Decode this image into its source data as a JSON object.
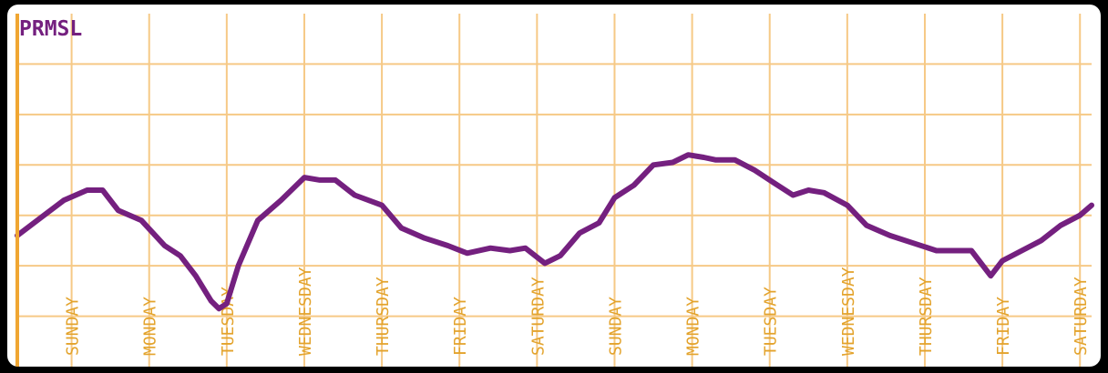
{
  "chart_data": {
    "type": "line",
    "title": "PRMSL",
    "xlabel": "",
    "ylabel": "",
    "grid": true,
    "x_range": [
      0,
      13.85
    ],
    "ylim": [
      0,
      7
    ],
    "x_ticks": [
      {
        "x": 0.7,
        "label": "SUNDAY"
      },
      {
        "x": 1.7,
        "label": "MONDAY"
      },
      {
        "x": 2.7,
        "label": "TUESDAY"
      },
      {
        "x": 3.7,
        "label": "WEDNESDAY"
      },
      {
        "x": 4.7,
        "label": "THURSDAY"
      },
      {
        "x": 5.7,
        "label": "FRIDAY"
      },
      {
        "x": 6.7,
        "label": "SATURDAY"
      },
      {
        "x": 7.7,
        "label": "SUNDAY"
      },
      {
        "x": 8.7,
        "label": "MONDAY"
      },
      {
        "x": 9.7,
        "label": "TUESDAY"
      },
      {
        "x": 10.7,
        "label": "WEDNESDAY"
      },
      {
        "x": 11.7,
        "label": "THURSDAY"
      },
      {
        "x": 12.7,
        "label": "FRIDAY"
      },
      {
        "x": 13.7,
        "label": "SATURDAY"
      }
    ],
    "x_gridlines": [
      0.7,
      1.7,
      2.7,
      3.7,
      4.7,
      5.7,
      6.7,
      7.7,
      8.7,
      9.7,
      10.7,
      11.7,
      12.7,
      13.7
    ],
    "y_gridlines": [
      1,
      2,
      3,
      4,
      5,
      6
    ],
    "series": [
      {
        "color": "#74207f",
        "points": [
          [
            0,
            2.6
          ],
          [
            0.3,
            2.95
          ],
          [
            0.6,
            3.3
          ],
          [
            0.9,
            3.5
          ],
          [
            1.1,
            3.5
          ],
          [
            1.3,
            3.1
          ],
          [
            1.6,
            2.9
          ],
          [
            1.9,
            2.4
          ],
          [
            2.1,
            2.2
          ],
          [
            2.3,
            1.8
          ],
          [
            2.5,
            1.3
          ],
          [
            2.6,
            1.15
          ],
          [
            2.7,
            1.25
          ],
          [
            2.85,
            2.0
          ],
          [
            3.1,
            2.9
          ],
          [
            3.4,
            3.3
          ],
          [
            3.7,
            3.75
          ],
          [
            3.9,
            3.7
          ],
          [
            4.1,
            3.7
          ],
          [
            4.35,
            3.4
          ],
          [
            4.7,
            3.2
          ],
          [
            4.95,
            2.75
          ],
          [
            5.25,
            2.55
          ],
          [
            5.55,
            2.4
          ],
          [
            5.8,
            2.25
          ],
          [
            6.1,
            2.35
          ],
          [
            6.35,
            2.3
          ],
          [
            6.55,
            2.35
          ],
          [
            6.8,
            2.05
          ],
          [
            7.0,
            2.2
          ],
          [
            7.25,
            2.65
          ],
          [
            7.5,
            2.85
          ],
          [
            7.7,
            3.35
          ],
          [
            7.95,
            3.6
          ],
          [
            8.2,
            4.0
          ],
          [
            8.45,
            4.05
          ],
          [
            8.65,
            4.2
          ],
          [
            8.85,
            4.15
          ],
          [
            9.0,
            4.1
          ],
          [
            9.25,
            4.1
          ],
          [
            9.5,
            3.9
          ],
          [
            9.75,
            3.65
          ],
          [
            10.0,
            3.4
          ],
          [
            10.2,
            3.5
          ],
          [
            10.4,
            3.45
          ],
          [
            10.7,
            3.2
          ],
          [
            10.95,
            2.8
          ],
          [
            11.25,
            2.6
          ],
          [
            11.55,
            2.45
          ],
          [
            11.85,
            2.3
          ],
          [
            12.1,
            2.3
          ],
          [
            12.3,
            2.3
          ],
          [
            12.55,
            1.8
          ],
          [
            12.7,
            2.1
          ],
          [
            12.95,
            2.3
          ],
          [
            13.2,
            2.5
          ],
          [
            13.45,
            2.8
          ],
          [
            13.7,
            3.0
          ],
          [
            13.85,
            3.2
          ]
        ]
      }
    ]
  }
}
